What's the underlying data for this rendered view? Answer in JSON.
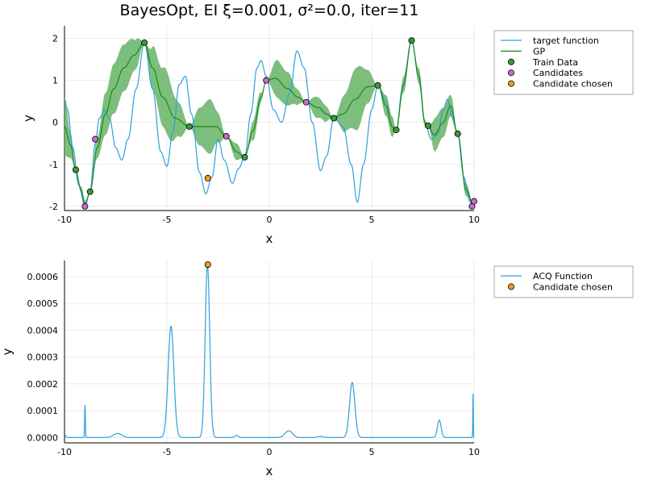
{
  "colors": {
    "target": "#2e9fdf",
    "gp": "#1a8a1a",
    "band": "#66b366",
    "train": "#3a9a3a",
    "candidates": "#cc66cc",
    "chosen": "#f39c12"
  },
  "chart_data": [
    {
      "type": "line",
      "title": "BayesOpt, EI ξ=0.001, σ²=0.0, iter=11",
      "xlabel": "x",
      "ylabel": "y",
      "xlim": [
        -10,
        10
      ],
      "ylim": [
        -2.1,
        2.3
      ],
      "xticks": [
        -10,
        -5,
        0,
        5,
        10
      ],
      "yticks": [
        -2,
        -1,
        0,
        1,
        2
      ],
      "grid": true,
      "legend_position": "outside-top-right",
      "series": [
        {
          "name": "target function",
          "kind": "line"
        },
        {
          "name": "GP",
          "kind": "line"
        },
        {
          "name": "Train Data",
          "kind": "scatter",
          "points": [
            [
              -9.45,
              -1.13
            ],
            [
              -8.75,
              -1.65
            ],
            [
              -6.1,
              1.9
            ],
            [
              -3.9,
              -0.1
            ],
            [
              -1.2,
              -0.83
            ],
            [
              3.15,
              0.1
            ],
            [
              5.3,
              0.88
            ],
            [
              6.2,
              -0.18
            ],
            [
              6.95,
              1.95
            ],
            [
              7.75,
              -0.08
            ],
            [
              9.2,
              -0.27
            ]
          ]
        },
        {
          "name": "Candidates",
          "kind": "scatter",
          "points": [
            [
              -8.5,
              -0.4
            ],
            [
              -9.0,
              -2.0
            ],
            [
              -2.1,
              -0.33
            ],
            [
              -0.15,
              1.0
            ],
            [
              1.8,
              0.48
            ],
            [
              9.9,
              -2.0
            ],
            [
              10.0,
              -1.88
            ]
          ]
        },
        {
          "name": "Candidate chosen",
          "kind": "scatter",
          "points": [
            [
              -3.0,
              -1.33
            ]
          ]
        }
      ]
    },
    {
      "type": "line",
      "xlabel": "x",
      "ylabel": "y",
      "xlim": [
        -10,
        10
      ],
      "ylim": [
        -2e-05,
        0.00066
      ],
      "xticks": [
        -10,
        -5,
        0,
        5,
        10
      ],
      "yticks": [
        "0.0000",
        "0.0001",
        "0.0002",
        "0.0003",
        "0.0004",
        "0.0005",
        "0.0006"
      ],
      "ytick_values": [
        0,
        0.0001,
        0.0002,
        0.0003,
        0.0004,
        0.0005,
        0.0006
      ],
      "grid": true,
      "legend_position": "outside-top-right",
      "series": [
        {
          "name": "ACQ Function",
          "kind": "line"
        },
        {
          "name": "Candidate chosen",
          "kind": "scatter",
          "points": [
            [
              -3.0,
              0.000645
            ]
          ]
        }
      ]
    }
  ]
}
